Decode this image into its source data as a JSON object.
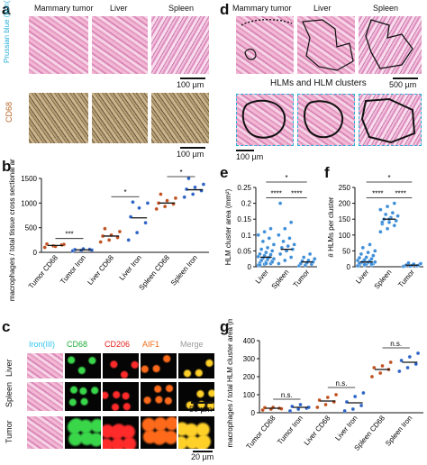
{
  "panels": {
    "a": {
      "letter": "a",
      "columns": [
        "Mammary tumor",
        "Liver",
        "Spleen"
      ],
      "row_labels": [
        "Prussian blue (iron(III))",
        "CD68"
      ],
      "scalebars": [
        "100 µm",
        "100 µm"
      ]
    },
    "b": {
      "letter": "b"
    },
    "c": {
      "letter": "c",
      "columns": [
        "Iron(III)",
        "CD68",
        "CD206",
        "AIF1",
        "Merge"
      ],
      "column_colors": [
        "#2ec4f0",
        "#1fae3a",
        "#e0201b",
        "#f36a10",
        "#9a9a9a"
      ],
      "rows": [
        "Liver",
        "Spleen",
        "Tumor"
      ],
      "scalebars": [
        "50 µm",
        "20 µm"
      ]
    },
    "d": {
      "letter": "d",
      "columns": [
        "Mammary tumor",
        "Liver",
        "Spleen"
      ],
      "banner": "HLMs and HLM clusters",
      "scalebars": [
        "500 µm",
        "100 µm"
      ]
    },
    "e": {
      "letter": "e"
    },
    "f": {
      "letter": "f"
    },
    "g": {
      "letter": "g"
    }
  },
  "chart_data": [
    {
      "id": "b",
      "type": "scatter",
      "ylabel": "macrophages / total tissue cross sectional area (mm²)",
      "ylim": [
        0,
        1500
      ],
      "yticks": [
        0,
        500,
        1000,
        1500
      ],
      "categories": [
        "Tumor CD68",
        "Tumor Iron",
        "Liver CD68",
        "Liver Iron",
        "Spleen CD68",
        "Spleen Iron"
      ],
      "colors": [
        "#c0501e",
        "#2b62c6",
        "#c0501e",
        "#2b62c6",
        "#c0501e",
        "#2b62c6"
      ],
      "means": [
        140,
        50,
        330,
        700,
        1000,
        1270
      ],
      "points": [
        [
          100,
          130,
          150,
          170,
          120,
          160
        ],
        [
          30,
          40,
          60,
          55,
          70,
          45
        ],
        [
          210,
          250,
          300,
          330,
          350,
          420,
          480
        ],
        [
          250,
          400,
          600,
          720,
          900,
          1000,
          1020
        ],
        [
          880,
          930,
          980,
          1000,
          1050,
          1100,
          1180
        ],
        [
          1120,
          1180,
          1250,
          1280,
          1320,
          1380,
          1500
        ]
      ],
      "significance": [
        {
          "from": 0,
          "to": 1,
          "label": "***"
        },
        {
          "from": 2,
          "to": 3,
          "label": "*"
        },
        {
          "from": 4,
          "to": 5,
          "label": "*"
        }
      ]
    },
    {
      "id": "e",
      "type": "scatter",
      "ylabel": "HLM cluster area (mm²)",
      "ylim": [
        0,
        0.25
      ],
      "yticks": [
        0,
        0.05,
        0.1,
        0.15,
        0.2,
        0.25
      ],
      "categories": [
        "Liver",
        "Spleen",
        "Tumor"
      ],
      "colors": [
        "#3d8ed8",
        "#3d8ed8",
        "#3d8ed8"
      ],
      "means": [
        0.03,
        0.055,
        0.015
      ],
      "points": [
        [
          0.005,
          0.008,
          0.01,
          0.012,
          0.015,
          0.018,
          0.02,
          0.022,
          0.025,
          0.027,
          0.03,
          0.032,
          0.035,
          0.038,
          0.04,
          0.045,
          0.05,
          0.055,
          0.06,
          0.07,
          0.08,
          0.09,
          0.1,
          0.11,
          0.12,
          0.005,
          0.01,
          0.015,
          0.02,
          0.025
        ],
        [
          0.01,
          0.02,
          0.03,
          0.04,
          0.05,
          0.055,
          0.06,
          0.065,
          0.07,
          0.08,
          0.09,
          0.1,
          0.12,
          0.14,
          0.2
        ],
        [
          0.003,
          0.005,
          0.008,
          0.01,
          0.012,
          0.015,
          0.018,
          0.02,
          0.025,
          0.03,
          0.04
        ]
      ],
      "significance": [
        {
          "from": 0,
          "to": 1,
          "label": "****"
        },
        {
          "from": 1,
          "to": 2,
          "label": "****"
        },
        {
          "from": 0,
          "to": 2,
          "label": "*"
        }
      ]
    },
    {
      "id": "f",
      "type": "scatter",
      "ylabel": "# HLMs per cluster",
      "ylim": [
        0,
        250
      ],
      "yticks": [
        0,
        50,
        100,
        150,
        200,
        250
      ],
      "categories": [
        "Liver",
        "Spleen",
        "Tumor"
      ],
      "colors": [
        "#3d8ed8",
        "#3d8ed8",
        "#3d8ed8"
      ],
      "means": [
        15,
        150,
        5
      ],
      "points": [
        [
          2,
          4,
          5,
          6,
          8,
          10,
          12,
          14,
          15,
          16,
          18,
          20,
          22,
          25,
          28,
          30,
          35,
          40,
          45,
          50,
          60,
          70,
          3,
          7,
          9,
          11
        ],
        [
          110,
          120,
          130,
          135,
          140,
          145,
          150,
          155,
          160,
          165,
          170,
          180,
          190,
          200,
          140,
          150
        ],
        [
          1,
          2,
          3,
          3,
          4,
          5,
          6,
          8,
          10,
          12
        ]
      ],
      "significance": [
        {
          "from": 0,
          "to": 1,
          "label": "****"
        },
        {
          "from": 1,
          "to": 2,
          "label": "****"
        },
        {
          "from": 0,
          "to": 2,
          "label": "*"
        }
      ]
    },
    {
      "id": "g",
      "type": "scatter",
      "ylabel": "macrophages / total HLM cluster area (mm²)",
      "ylim": [
        0,
        400
      ],
      "yticks": [
        0,
        100,
        200,
        300,
        400
      ],
      "categories": [
        "Tumor CD68",
        "Tumor Iron",
        "Liver CD68",
        "Liver Iron",
        "Spleen CD68",
        "Spleen Iron"
      ],
      "colors": [
        "#c0501e",
        "#2b62c6",
        "#c0501e",
        "#2b62c6",
        "#c0501e",
        "#2b62c6"
      ],
      "means": [
        25,
        30,
        65,
        55,
        240,
        280
      ],
      "points": [
        [
          15,
          20,
          25,
          28,
          30,
          22
        ],
        [
          10,
          20,
          25,
          35,
          45,
          30
        ],
        [
          30,
          45,
          60,
          70,
          85,
          100
        ],
        [
          10,
          20,
          40,
          60,
          90,
          110
        ],
        [
          200,
          220,
          240,
          250,
          260,
          280
        ],
        [
          230,
          250,
          270,
          290,
          310,
          330
        ]
      ],
      "significance": [
        {
          "from": 0,
          "to": 1,
          "label": "n.s."
        },
        {
          "from": 2,
          "to": 3,
          "label": "n.s."
        },
        {
          "from": 4,
          "to": 5,
          "label": "n.s."
        }
      ]
    }
  ]
}
